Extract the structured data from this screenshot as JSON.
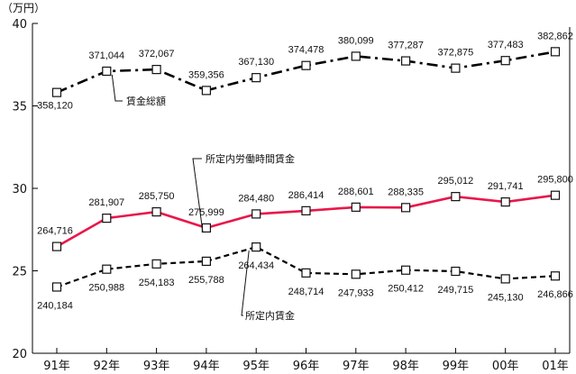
{
  "chart_data": {
    "type": "line",
    "unit": "（万円）",
    "categories": [
      "91年",
      "92年",
      "93年",
      "94年",
      "95年",
      "96年",
      "97年",
      "98年",
      "99年",
      "00年",
      "01年"
    ],
    "ylim": [
      20,
      40
    ],
    "yticks": [
      20,
      25,
      30,
      35,
      40
    ],
    "grid": false,
    "series": [
      {
        "name": "賃金総額",
        "color": "#000000",
        "style": "dash-dot",
        "values": [
          35.812,
          37.1044,
          37.2067,
          35.9356,
          36.713,
          37.4478,
          38.0099,
          37.7287,
          37.2875,
          37.7483,
          38.2862
        ],
        "labels": [
          "358,120",
          "371,044",
          "372,067",
          "359,356",
          "367,130",
          "374,478",
          "380,099",
          "377,287",
          "372,875",
          "377,483",
          "382,862"
        ]
      },
      {
        "name": "所定内労働時間賃金",
        "color": "#e8174a",
        "style": "solid",
        "values": [
          26.4716,
          28.1907,
          28.575,
          27.5999,
          28.448,
          28.6414,
          28.8601,
          28.8335,
          29.5012,
          29.1741,
          29.58
        ],
        "labels": [
          "264,716",
          "281,907",
          "285,750",
          "275,999",
          "284,480",
          "286,414",
          "288,601",
          "288,335",
          "295,012",
          "291,741",
          "295,800"
        ]
      },
      {
        "name": "所定内賃金",
        "color": "#000000",
        "style": "dashed",
        "values": [
          24.0184,
          25.0988,
          25.4183,
          25.5788,
          26.4434,
          24.8714,
          24.7933,
          25.0412,
          24.9715,
          24.513,
          24.6866
        ],
        "labels": [
          "240,184",
          "250,988",
          "254,183",
          "255,788",
          "264,434",
          "248,714",
          "247,933",
          "250,412",
          "249,715",
          "245,130",
          "246,866"
        ]
      }
    ]
  }
}
